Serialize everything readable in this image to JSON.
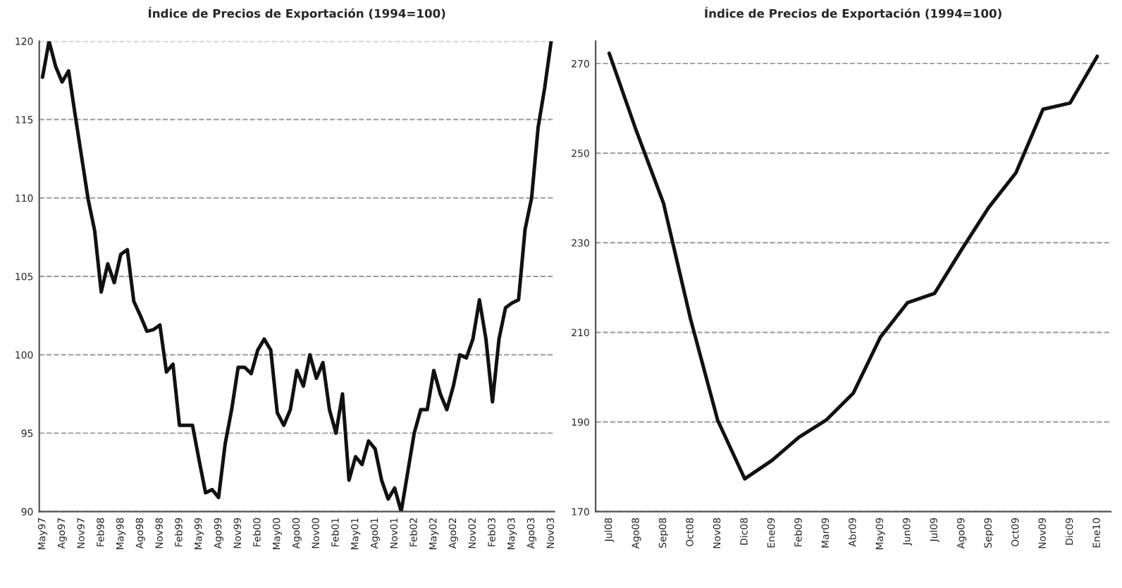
{
  "chart_data": [
    {
      "type": "line",
      "title": "Índice de Precios de Exportación (1994=100)",
      "ylim": [
        90,
        120
      ],
      "yticks": [
        90,
        95,
        100,
        105,
        110,
        115,
        120
      ],
      "grid": "y",
      "line_style": "solid",
      "categories": [
        "May97",
        null,
        null,
        "Ago97",
        null,
        null,
        "Nov97",
        null,
        null,
        "Feb98",
        null,
        null,
        "May98",
        null,
        null,
        "Ago98",
        null,
        null,
        "Nov98",
        null,
        null,
        "Feb99",
        null,
        null,
        "May99",
        null,
        null,
        "Ago99",
        null,
        null,
        "Nov99",
        null,
        null,
        "Feb00",
        null,
        null,
        "May00",
        null,
        null,
        "Ago00",
        null,
        null,
        "Nov00",
        null,
        null,
        "Feb01",
        null,
        null,
        "May01",
        null,
        null,
        "Ago01",
        null,
        null,
        "Nov01",
        null,
        null,
        "Feb02",
        null,
        null,
        "May02",
        null,
        null,
        "Ago02",
        null,
        null,
        "Nov02",
        null,
        null,
        "Feb03",
        null,
        null,
        "May03",
        null,
        null,
        "Ago03",
        null,
        null,
        "Nov03"
      ],
      "series": [
        {
          "color": "#111111",
          "values": [
            117.7,
            120,
            118.4,
            117.4,
            118.1,
            115.3,
            112.6,
            109.9,
            107.9,
            104.0,
            105.8,
            104.6,
            106.4,
            106.7,
            103.4,
            102.5,
            101.5,
            101.6,
            101.9,
            98.9,
            99.4,
            95.5,
            95.5,
            95.5,
            93.3,
            91.2,
            91.4,
            90.9,
            94.3,
            96.5,
            99.2,
            99.2,
            98.8,
            100.3,
            101.0,
            100.3,
            96.3,
            95.5,
            96.5,
            99,
            98,
            100,
            98.5,
            99.5,
            96.5,
            95,
            97.5,
            92,
            93.5,
            93,
            94.5,
            94,
            92,
            90.8,
            91.5,
            90,
            92.5,
            95,
            96.5,
            96.5,
            99,
            97.5,
            96.5,
            98,
            100,
            99.8,
            101,
            103.5,
            101,
            97,
            101,
            103,
            103.3,
            103.5,
            108,
            110,
            114.5,
            117,
            120
          ]
        }
      ]
    },
    {
      "type": "line",
      "title": "Índice de Precios de Exportación (1994=100)",
      "ylim": [
        170,
        275
      ],
      "yticks": [
        170,
        190,
        210,
        230,
        250,
        270
      ],
      "grid": "y",
      "line_style": "solid",
      "categories": [
        "Jul08",
        "Ago08",
        "Sep08",
        "Oct08",
        "Nov08",
        "Dic08",
        "Ene09",
        "Feb09",
        "Mar09",
        "Abr09",
        "May09",
        "Jun09",
        "Jul09",
        "Ago09",
        "Sep09",
        "Oct09",
        "Nov09",
        "Dic09",
        "Ene10"
      ],
      "series": [
        {
          "color": "#111111",
          "values": [
            272.3,
            255.0,
            238.9,
            213.0,
            190.4,
            177.3,
            181.4,
            186.6,
            190.4,
            196.4,
            208.9,
            216.6,
            218.7,
            228.5,
            237.9,
            245.6,
            259.8,
            261.2,
            271.6
          ]
        }
      ]
    }
  ]
}
